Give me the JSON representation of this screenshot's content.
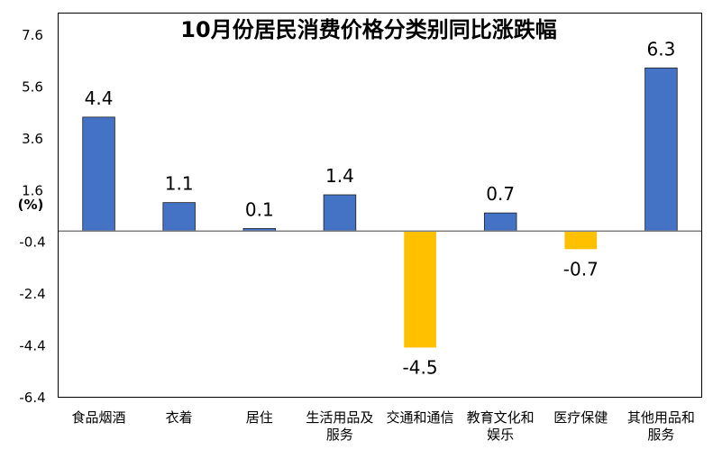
{
  "chart_data": {
    "type": "bar",
    "title": "10月份居民消费价格分类别同比涨跌幅",
    "ylabel": "(%)",
    "ylim": [
      -6.4,
      8.4
    ],
    "yticks": [
      7.6,
      5.6,
      3.6,
      1.6,
      -0.4,
      -2.4,
      -4.4,
      -6.4
    ],
    "categories": [
      [
        "食品烟酒"
      ],
      [
        "衣着"
      ],
      [
        "居住"
      ],
      [
        "生活用品及",
        "服务"
      ],
      [
        "交通和通信"
      ],
      [
        "教育文化和",
        "娱乐"
      ],
      [
        "医疗保健"
      ],
      [
        "其他用品和",
        "服务"
      ]
    ],
    "values": [
      4.4,
      1.1,
      0.1,
      1.4,
      -4.5,
      0.7,
      -0.7,
      6.3
    ],
    "data_labels": [
      "4.4",
      "1.1",
      "0.1",
      "1.4",
      "-4.5",
      "0.7",
      "-0.7",
      "6.3"
    ],
    "grid": false,
    "legend": "none",
    "colors": {
      "positive": "#4472C4",
      "negative": "#FFC000",
      "axis": "#808080",
      "frame": "#000000"
    }
  }
}
